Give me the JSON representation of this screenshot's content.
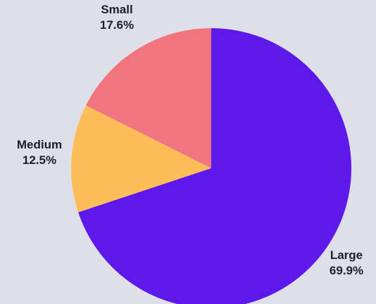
{
  "chart_data": {
    "type": "pie",
    "slices": [
      {
        "label": "Large",
        "value": 69.9,
        "percent_text": "69.9%",
        "color": "#5d19ea"
      },
      {
        "label": "Medium",
        "value": 12.5,
        "percent_text": "12.5%",
        "color": "#ffbd59"
      },
      {
        "label": "Small",
        "value": 17.6,
        "percent_text": "17.6%",
        "color": "#f0757e"
      }
    ],
    "start_angle_deg": 0,
    "direction": "clockwise",
    "legend": "none"
  },
  "colors": {
    "background": "#dfdfea",
    "label_text": "#1e1e2a"
  }
}
